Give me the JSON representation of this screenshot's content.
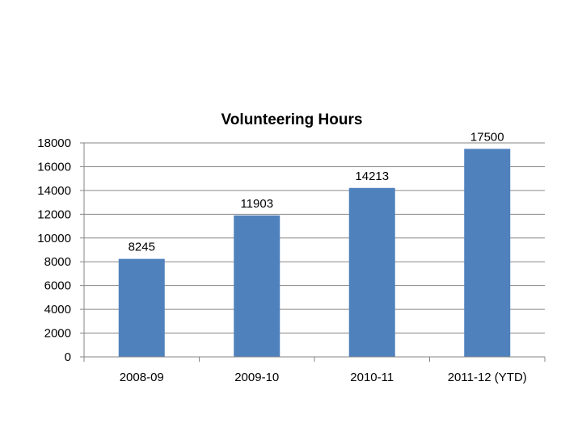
{
  "chart_data": {
    "type": "bar",
    "title": "Volunteering Hours",
    "xlabel": "",
    "ylabel": "",
    "categories": [
      "2008-09",
      "2009-10",
      "2010-11",
      "2011-12 (YTD)"
    ],
    "values": [
      8245,
      11903,
      14213,
      17500
    ],
    "data_labels": [
      "8245",
      "11903",
      "14213",
      "17500"
    ],
    "ylim": [
      0,
      18000
    ],
    "yticks": [
      0,
      2000,
      4000,
      6000,
      8000,
      10000,
      12000,
      14000,
      16000,
      18000
    ],
    "grid": true,
    "legend": "none",
    "colors": {
      "bar": "#4f81bd",
      "grid": "#868686",
      "axis": "#868686"
    }
  }
}
